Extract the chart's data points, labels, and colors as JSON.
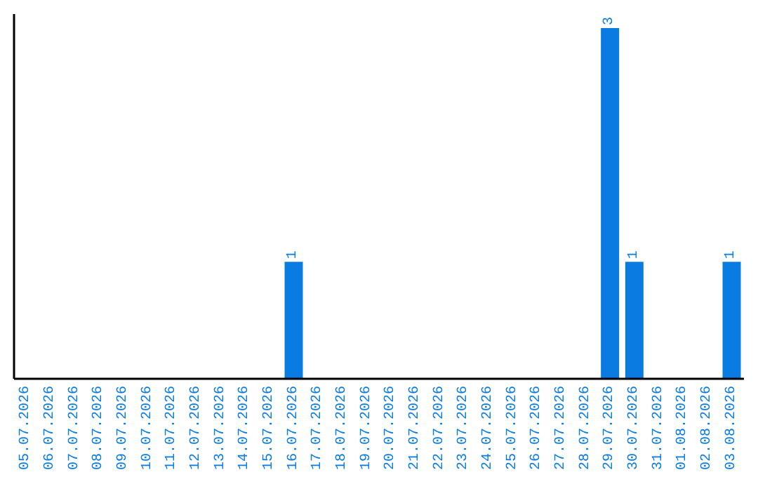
{
  "chart_data": {
    "type": "bar",
    "categories": [
      "05.07.2026",
      "06.07.2026",
      "07.07.2026",
      "08.07.2026",
      "09.07.2026",
      "10.07.2026",
      "11.07.2026",
      "12.07.2026",
      "13.07.2026",
      "14.07.2026",
      "15.07.2026",
      "16.07.2026",
      "17.07.2026",
      "18.07.2026",
      "19.07.2026",
      "20.07.2026",
      "21.07.2026",
      "22.07.2026",
      "23.07.2026",
      "24.07.2026",
      "25.07.2026",
      "26.07.2026",
      "27.07.2026",
      "28.07.2026",
      "29.07.2026",
      "30.07.2026",
      "31.07.2026",
      "01.08.2026",
      "02.08.2026",
      "03.08.2026"
    ],
    "values": [
      0,
      0,
      0,
      0,
      0,
      0,
      0,
      0,
      0,
      0,
      0,
      1,
      0,
      0,
      0,
      0,
      0,
      0,
      0,
      0,
      0,
      0,
      0,
      0,
      3,
      1,
      0,
      0,
      0,
      1
    ],
    "value_labels": [
      null,
      null,
      null,
      null,
      null,
      null,
      null,
      null,
      null,
      null,
      null,
      "1",
      null,
      null,
      null,
      null,
      null,
      null,
      null,
      null,
      null,
      null,
      null,
      null,
      "3",
      "1",
      null,
      null,
      null,
      "1"
    ],
    "color": "#0a7be0",
    "tick_labels": "x",
    "grid": false,
    "legend": false
  }
}
